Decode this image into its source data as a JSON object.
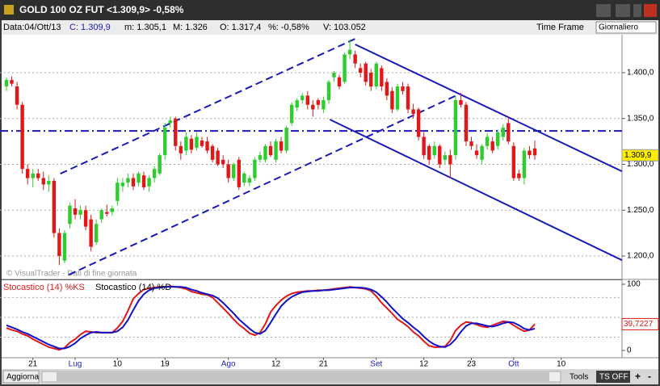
{
  "window": {
    "title": "GOLD 100 OZ FUT <1.309,9> -0,58%",
    "info": [
      "Data:04/Ott/13",
      "C: 1.309,9",
      "m: 1.305,1",
      "M: 1.326",
      "O: 1.317,4",
      "%: -0,58%",
      "V: 103.052"
    ],
    "time_frame_label": "Time Frame",
    "time_frame": "Giornaliero",
    "watermark": "© VisualTrader - Dati di fine giornata",
    "buttons": {
      "refresh": "Aggiorna",
      "tools": "Tools",
      "ts": "TS OFF",
      "plus": "+",
      "minus": "-"
    }
  },
  "chart_data": {
    "type": "candlestick",
    "up_color": "#2ecc2e",
    "down_color": "#e01818",
    "grid": true,
    "categories": [
      null,
      null,
      null,
      null,
      null,
      "21",
      null,
      null,
      null,
      null,
      null,
      null,
      null,
      "Lug",
      null,
      null,
      null,
      null,
      null,
      null,
      null,
      "10",
      null,
      null,
      null,
      null,
      null,
      null,
      null,
      null,
      "19",
      null,
      null,
      null,
      null,
      null,
      null,
      null,
      null,
      null,
      null,
      null,
      "Ago",
      null,
      null,
      null,
      null,
      null,
      null,
      null,
      null,
      "12",
      null,
      null,
      null,
      null,
      null,
      null,
      null,
      null,
      "21",
      null,
      null,
      null,
      null,
      null,
      null,
      null,
      null,
      null,
      "Set",
      null,
      null,
      null,
      null,
      null,
      null,
      null,
      null,
      "12",
      null,
      null,
      null,
      null,
      null,
      null,
      null,
      null,
      "23",
      null,
      null,
      null,
      null,
      null,
      null,
      null,
      "Ott",
      null,
      null,
      null,
      null,
      null,
      null,
      null,
      null,
      "10"
    ],
    "ohlc": [
      [
        1385,
        1395,
        1380,
        1392
      ],
      [
        1392,
        1396,
        1385,
        1388
      ],
      [
        1385,
        1390,
        1360,
        1365
      ],
      [
        1365,
        1368,
        1290,
        1295
      ],
      [
        1295,
        1300,
        1278,
        1285
      ],
      [
        1285,
        1295,
        1275,
        1290
      ],
      [
        1290,
        1295,
        1282,
        1285
      ],
      [
        1285,
        1292,
        1272,
        1278
      ],
      [
        1278,
        1288,
        1270,
        1282
      ],
      [
        1282,
        1285,
        1220,
        1225
      ],
      [
        1225,
        1230,
        1190,
        1200
      ],
      [
        1195,
        1228,
        1192,
        1225
      ],
      [
        1235,
        1258,
        1230,
        1255
      ],
      [
        1252,
        1262,
        1240,
        1245
      ],
      [
        1245,
        1255,
        1240,
        1250
      ],
      [
        1250,
        1255,
        1228,
        1232
      ],
      [
        1240,
        1245,
        1205,
        1210
      ],
      [
        1215,
        1240,
        1212,
        1235
      ],
      [
        1240,
        1252,
        1236,
        1250
      ],
      [
        1248,
        1256,
        1243,
        1246
      ],
      [
        1248,
        1255,
        1244,
        1252
      ],
      [
        1260,
        1285,
        1255,
        1280
      ],
      [
        1276,
        1285,
        1270,
        1280
      ],
      [
        1280,
        1290,
        1275,
        1285
      ],
      [
        1285,
        1290,
        1272,
        1276
      ],
      [
        1280,
        1292,
        1276,
        1290
      ],
      [
        1288,
        1292,
        1272,
        1275
      ],
      [
        1276,
        1288,
        1270,
        1285
      ],
      [
        1285,
        1298,
        1280,
        1295
      ],
      [
        1290,
        1312,
        1288,
        1310
      ],
      [
        1310,
        1345,
        1305,
        1340
      ],
      [
        1345,
        1352,
        1340,
        1348
      ],
      [
        1350,
        1352,
        1315,
        1320
      ],
      [
        1320,
        1325,
        1305,
        1312
      ],
      [
        1315,
        1335,
        1310,
        1330
      ],
      [
        1328,
        1332,
        1312,
        1316
      ],
      [
        1318,
        1335,
        1315,
        1330
      ],
      [
        1326,
        1330,
        1318,
        1320
      ],
      [
        1325,
        1330,
        1312,
        1315
      ],
      [
        1320,
        1322,
        1302,
        1305
      ],
      [
        1315,
        1318,
        1298,
        1300
      ],
      [
        1305,
        1310,
        1296,
        1300
      ],
      [
        1300,
        1305,
        1280,
        1285
      ],
      [
        1285,
        1302,
        1282,
        1300
      ],
      [
        1305,
        1308,
        1272,
        1275
      ],
      [
        1280,
        1292,
        1276,
        1290
      ],
      [
        1280,
        1288,
        1276,
        1285
      ],
      [
        1285,
        1308,
        1282,
        1305
      ],
      [
        1305,
        1314,
        1302,
        1310
      ],
      [
        1305,
        1322,
        1302,
        1320
      ],
      [
        1320,
        1325,
        1308,
        1310
      ],
      [
        1305,
        1328,
        1302,
        1325
      ],
      [
        1325,
        1330,
        1312,
        1315
      ],
      [
        1315,
        1342,
        1312,
        1340
      ],
      [
        1345,
        1368,
        1342,
        1365
      ],
      [
        1362,
        1372,
        1358,
        1370
      ],
      [
        1370,
        1378,
        1366,
        1375
      ],
      [
        1375,
        1380,
        1360,
        1365
      ],
      [
        1365,
        1370,
        1352,
        1360
      ],
      [
        1370,
        1372,
        1360,
        1365
      ],
      [
        1360,
        1374,
        1356,
        1370
      ],
      [
        1370,
        1392,
        1366,
        1390
      ],
      [
        1395,
        1402,
        1390,
        1400
      ],
      [
        1395,
        1398,
        1382,
        1385
      ],
      [
        1390,
        1422,
        1388,
        1420
      ],
      [
        1420,
        1436,
        1415,
        1425
      ],
      [
        1420,
        1424,
        1405,
        1410
      ],
      [
        1405,
        1410,
        1395,
        1400
      ],
      [
        1410,
        1412,
        1386,
        1390
      ],
      [
        1400,
        1404,
        1380,
        1385
      ],
      [
        1385,
        1412,
        1382,
        1410
      ],
      [
        1405,
        1408,
        1380,
        1385
      ],
      [
        1390,
        1394,
        1370,
        1375
      ],
      [
        1380,
        1384,
        1356,
        1360
      ],
      [
        1360,
        1388,
        1358,
        1385
      ],
      [
        1385,
        1390,
        1376,
        1380
      ],
      [
        1385,
        1388,
        1356,
        1360
      ],
      [
        1360,
        1366,
        1350,
        1355
      ],
      [
        1360,
        1362,
        1326,
        1330
      ],
      [
        1330,
        1335,
        1306,
        1310
      ],
      [
        1320,
        1322,
        1300,
        1305
      ],
      [
        1310,
        1325,
        1306,
        1320
      ],
      [
        1320,
        1322,
        1296,
        1300
      ],
      [
        1305,
        1314,
        1300,
        1310
      ],
      [
        1310,
        1316,
        1285,
        1300
      ],
      [
        1310,
        1375,
        1305,
        1370
      ],
      [
        1370,
        1378,
        1362,
        1365
      ],
      [
        1365,
        1368,
        1320,
        1325
      ],
      [
        1325,
        1330,
        1316,
        1320
      ],
      [
        1315,
        1322,
        1306,
        1310
      ],
      [
        1305,
        1322,
        1300,
        1320
      ],
      [
        1320,
        1334,
        1316,
        1330
      ],
      [
        1325,
        1330,
        1312,
        1315
      ],
      [
        1320,
        1338,
        1316,
        1335
      ],
      [
        1330,
        1344,
        1326,
        1340
      ],
      [
        1345,
        1352,
        1322,
        1325
      ],
      [
        1320,
        1324,
        1282,
        1285
      ],
      [
        1290,
        1294,
        1282,
        1285
      ],
      [
        1285,
        1318,
        1278,
        1315
      ],
      [
        1315,
        1320,
        1306,
        1310
      ],
      [
        1317.4,
        1326,
        1305.1,
        1309.9
      ],
      null,
      null,
      null,
      null,
      null
    ],
    "ylim": [
      1175.3,
      1439.7
    ],
    "yticks": [
      {
        "value": 1200,
        "label": "1.200,0"
      },
      {
        "value": 1250,
        "label": "1.250,0"
      },
      {
        "value": 1300,
        "label": "1.300,0"
      },
      {
        "value": 1350,
        "label": "1.350,0"
      },
      {
        "value": 1400,
        "label": "1.400,0"
      }
    ],
    "last_price": {
      "value": 1309.9,
      "label": "1.309,9"
    },
    "level": {
      "value": 1336.5,
      "color": "#1a1ab8"
    },
    "trendlines": [
      {
        "x": [
          10.2,
          66
        ],
        "y": [
          1289.8,
          1437
        ],
        "color": "#1a1ab8",
        "style": "dashed"
      },
      {
        "x": [
          11.8,
          85.2
        ],
        "y": [
          1179.5,
          1375.3
        ],
        "color": "#1a1ab8",
        "style": "dashed"
      },
      {
        "x": [
          66,
          116.5
        ],
        "y": [
          1430.9,
          1292.4
        ],
        "color": "#1a1ab8",
        "style": "solid"
      },
      {
        "x": [
          61.2,
          116.5
        ],
        "y": [
          1348.9,
          1195.4
        ],
        "color": "#1a1ab8",
        "style": "solid"
      }
    ],
    "indicator": {
      "type": "line",
      "ylim": [
        -9.8,
        106.1
      ],
      "yticks": [
        0,
        100
      ],
      "levels": [
        20,
        50,
        80
      ],
      "last_label": {
        "value": 39.7227,
        "label": "39,7227"
      },
      "series": [
        {
          "name": "Stocastico (14) %KS",
          "color": "#e01818",
          "values": [
            34,
            31,
            29,
            25,
            22,
            17,
            13,
            9,
            5,
            3,
            1,
            4,
            12,
            17,
            24,
            29,
            28,
            27,
            27,
            27,
            27,
            34,
            44,
            60,
            78,
            86,
            92,
            94,
            95,
            96,
            96,
            97,
            96,
            95,
            93,
            89,
            87,
            85,
            84,
            80,
            72,
            64,
            56,
            47,
            39,
            33,
            26,
            23,
            27,
            40,
            58,
            68,
            76,
            82,
            86,
            88,
            89,
            90,
            90,
            91,
            91,
            92,
            93,
            94,
            95,
            96,
            95,
            94,
            93,
            90,
            82,
            72,
            64,
            56,
            47,
            42,
            36,
            28,
            22,
            14,
            7,
            5,
            5,
            6,
            15,
            30,
            38,
            43,
            42,
            39,
            36,
            35,
            38,
            41,
            44,
            43,
            38,
            33,
            29,
            31,
            39.7227,
            null,
            null,
            null,
            null,
            null
          ]
        },
        {
          "name": "Stocastico (14) %D",
          "color": "#1010c8",
          "values": [
            38,
            35,
            32,
            28,
            25,
            21,
            17,
            13,
            9,
            6,
            3,
            3,
            6,
            11,
            18,
            23,
            27,
            28,
            27,
            27,
            27,
            29,
            35,
            46,
            61,
            75,
            85,
            91,
            94,
            95,
            96,
            96,
            96,
            96,
            95,
            92,
            90,
            87,
            85,
            83,
            79,
            72,
            64,
            56,
            47,
            40,
            33,
            27,
            25,
            30,
            42,
            55,
            67,
            75,
            81,
            85,
            88,
            89,
            90,
            90,
            91,
            91,
            92,
            93,
            94,
            95,
            95,
            95,
            94,
            92,
            88,
            81,
            73,
            64,
            56,
            48,
            42,
            35,
            29,
            21,
            14,
            9,
            6,
            5,
            9,
            17,
            28,
            37,
            41,
            41,
            39,
            37,
            36,
            38,
            41,
            43,
            42,
            38,
            33,
            31,
            33,
            null,
            null,
            null,
            null,
            null
          ]
        }
      ]
    }
  }
}
